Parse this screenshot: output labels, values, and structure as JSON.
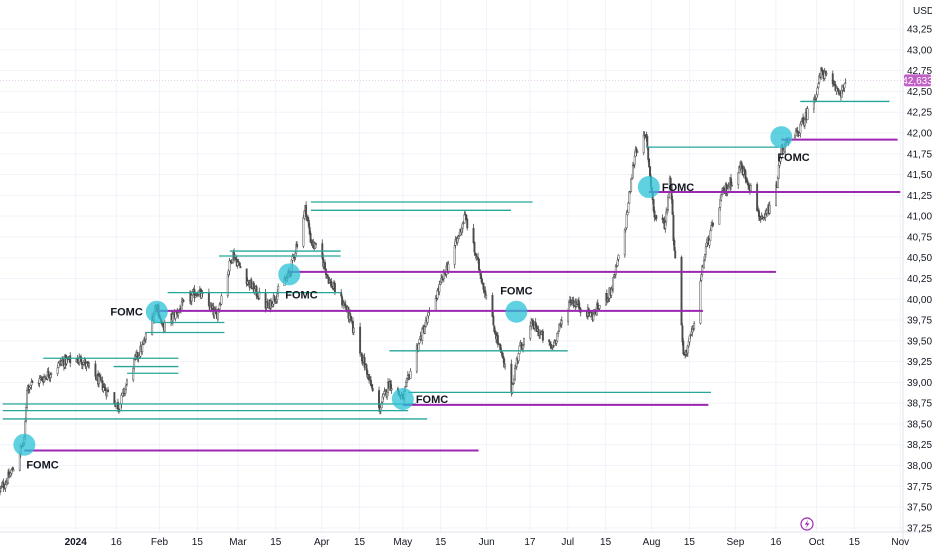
{
  "currency_label": "USD",
  "last_price_label": "42,633",
  "colors": {
    "candle": "#4a4a4a",
    "support_line": "#26a69a",
    "fomc_line": "#9c27b0",
    "fomc_marker": "#29c2d6",
    "price_badge": "#c160c6",
    "grid": "#f0f3fa",
    "axis_text": "#131722"
  },
  "icons": [
    "lightning-icon"
  ],
  "chart_data": {
    "type": "candlestick",
    "title": "",
    "xlabel": "",
    "ylabel": "",
    "ylim": [
      37200,
      43600
    ],
    "xlim": [
      "2023-12-04",
      "2024-11-02"
    ],
    "y_ticks": [
      37250,
      37500,
      37750,
      38000,
      38250,
      38500,
      38750,
      39000,
      39250,
      39500,
      39750,
      40000,
      40250,
      40500,
      40750,
      41000,
      41250,
      41500,
      41750,
      42000,
      42250,
      42500,
      42750,
      43000,
      43250
    ],
    "y_tick_labels": [
      "37,250",
      "37,500",
      "37,750",
      "38,000",
      "38,250",
      "38,500",
      "38,750",
      "39,000",
      "39,250",
      "39,500",
      "39,750",
      "40,000",
      "40,250",
      "40,500",
      "40,750",
      "41,000",
      "41,250",
      "41,500",
      "41,750",
      "42,000",
      "42,250",
      "42,500",
      "42,750",
      "43,000",
      "43,250"
    ],
    "x_ticks": [
      {
        "date": "2024-01-01",
        "label": "2024"
      },
      {
        "date": "2024-01-16",
        "label": "16"
      },
      {
        "date": "2024-02-01",
        "label": "Feb"
      },
      {
        "date": "2024-02-15",
        "label": "15"
      },
      {
        "date": "2024-03-01",
        "label": "Mar"
      },
      {
        "date": "2024-03-15",
        "label": "15"
      },
      {
        "date": "2024-04-01",
        "label": "Apr"
      },
      {
        "date": "2024-04-15",
        "label": "15"
      },
      {
        "date": "2024-05-01",
        "label": "May"
      },
      {
        "date": "2024-05-15",
        "label": "15"
      },
      {
        "date": "2024-06-01",
        "label": "Jun"
      },
      {
        "date": "2024-06-17",
        "label": "17"
      },
      {
        "date": "2024-07-01",
        "label": "Jul"
      },
      {
        "date": "2024-07-15",
        "label": "15"
      },
      {
        "date": "2024-08-01",
        "label": "Aug"
      },
      {
        "date": "2024-08-15",
        "label": "15"
      },
      {
        "date": "2024-09-01",
        "label": "Sep"
      },
      {
        "date": "2024-09-16",
        "label": "16"
      },
      {
        "date": "2024-10-01",
        "label": "Oct"
      },
      {
        "date": "2024-10-15",
        "label": "15"
      },
      {
        "date": "2024-11-01",
        "label": "Nov"
      }
    ],
    "last_price": 42633,
    "price_path": [
      [
        "2023-12-04",
        37700
      ],
      [
        "2023-12-08",
        37900
      ],
      [
        "2023-12-13",
        38300
      ],
      [
        "2023-12-14",
        38950
      ],
      [
        "2023-12-20",
        39050
      ],
      [
        "2023-12-27",
        39250
      ],
      [
        "2024-01-03",
        39280
      ],
      [
        "2024-01-10",
        39000
      ],
      [
        "2024-01-17",
        38700
      ],
      [
        "2024-01-22",
        39200
      ],
      [
        "2024-01-26",
        39450
      ],
      [
        "2024-01-31",
        39950
      ],
      [
        "2024-02-02",
        39650
      ],
      [
        "2024-02-09",
        39900
      ],
      [
        "2024-02-15",
        40100
      ],
      [
        "2024-02-22",
        39800
      ],
      [
        "2024-02-28",
        40550
      ],
      [
        "2024-03-05",
        40200
      ],
      [
        "2024-03-12",
        39900
      ],
      [
        "2024-03-20",
        40300
      ],
      [
        "2024-03-26",
        41100
      ],
      [
        "2024-03-28",
        40700
      ],
      [
        "2024-04-01",
        40500
      ],
      [
        "2024-04-04",
        40200
      ],
      [
        "2024-04-10",
        39900
      ],
      [
        "2024-04-17",
        39200
      ],
      [
        "2024-04-22",
        38650
      ],
      [
        "2024-04-26",
        39000
      ],
      [
        "2024-05-01",
        38800
      ],
      [
        "2024-05-06",
        39400
      ],
      [
        "2024-05-14",
        40100
      ],
      [
        "2024-05-21",
        40700
      ],
      [
        "2024-05-24",
        41000
      ],
      [
        "2024-05-29",
        40400
      ],
      [
        "2024-06-05",
        39500
      ],
      [
        "2024-06-10",
        38900
      ],
      [
        "2024-06-13",
        39400
      ],
      [
        "2024-06-18",
        39700
      ],
      [
        "2024-06-25",
        39400
      ],
      [
        "2024-07-02",
        40000
      ],
      [
        "2024-07-10",
        39800
      ],
      [
        "2024-07-17",
        40100
      ],
      [
        "2024-07-22",
        40800
      ],
      [
        "2024-07-26",
        41800
      ],
      [
        "2024-07-30",
        41950
      ],
      [
        "2024-08-02",
        41000
      ],
      [
        "2024-08-06",
        40900
      ],
      [
        "2024-08-08",
        41500
      ],
      [
        "2024-08-09",
        40800
      ],
      [
        "2024-08-13",
        39300
      ],
      [
        "2024-08-16",
        39600
      ],
      [
        "2024-08-21",
        40600
      ],
      [
        "2024-08-27",
        41250
      ],
      [
        "2024-09-03",
        41600
      ],
      [
        "2024-09-06",
        41400
      ],
      [
        "2024-09-11",
        40900
      ],
      [
        "2024-09-16",
        41300
      ],
      [
        "2024-09-18",
        41800
      ],
      [
        "2024-09-24",
        42000
      ],
      [
        "2024-09-30",
        42400
      ],
      [
        "2024-10-03",
        42750
      ],
      [
        "2024-10-07",
        42550
      ],
      [
        "2024-10-10",
        42500
      ],
      [
        "2024-10-14",
        42633
      ]
    ],
    "support_lines": [
      {
        "from": "2023-12-05",
        "to": "2024-05-10",
        "y": 38560
      },
      {
        "from": "2023-12-05",
        "to": "2024-05-03",
        "y": 38660
      },
      {
        "from": "2023-12-05",
        "to": "2024-05-06",
        "y": 38740
      },
      {
        "from": "2023-12-20",
        "to": "2024-02-08",
        "y": 39290
      },
      {
        "from": "2024-01-15",
        "to": "2024-02-08",
        "y": 39190
      },
      {
        "from": "2024-01-20",
        "to": "2024-02-08",
        "y": 39110
      },
      {
        "from": "2024-01-27",
        "to": "2024-02-25",
        "y": 39600
      },
      {
        "from": "2024-01-30",
        "to": "2024-02-25",
        "y": 39720
      },
      {
        "from": "2024-02-04",
        "to": "2024-04-08",
        "y": 40080
      },
      {
        "from": "2024-02-23",
        "to": "2024-04-08",
        "y": 40520
      },
      {
        "from": "2024-02-27",
        "to": "2024-04-08",
        "y": 40580
      },
      {
        "from": "2024-03-28",
        "to": "2024-06-18",
        "y": 41170
      },
      {
        "from": "2024-03-28",
        "to": "2024-06-10",
        "y": 41070
      },
      {
        "from": "2024-04-26",
        "to": "2024-07-01",
        "y": 39380
      },
      {
        "from": "2024-05-03",
        "to": "2024-08-23",
        "y": 38880
      },
      {
        "from": "2024-07-30",
        "to": "2024-09-17",
        "y": 41830
      },
      {
        "from": "2024-09-25",
        "to": "2024-10-28",
        "y": 42380
      }
    ],
    "fomc_lines": [
      {
        "from": "2023-12-13",
        "to": "2024-05-29",
        "y": 38180
      },
      {
        "from": "2024-01-31",
        "to": "2024-08-20",
        "y": 39860
      },
      {
        "from": "2024-03-20",
        "to": "2024-09-16",
        "y": 40330
      },
      {
        "from": "2024-05-01",
        "to": "2024-08-22",
        "y": 38730
      },
      {
        "from": "2024-07-31",
        "to": "2024-11-01",
        "y": 41290
      },
      {
        "from": "2024-09-18",
        "to": "2024-10-31",
        "y": 41920
      }
    ],
    "annotations": [
      {
        "label": "FOMC",
        "date": "2023-12-13",
        "y": 38250,
        "text_position": "below"
      },
      {
        "label": "FOMC",
        "date": "2024-01-31",
        "y": 39850,
        "text_position": "left"
      },
      {
        "label": "FOMC",
        "date": "2024-03-20",
        "y": 40300,
        "text_position": "below"
      },
      {
        "label": "FOMC",
        "date": "2024-05-01",
        "y": 38800,
        "text_position": "right"
      },
      {
        "label": "FOMC",
        "date": "2024-06-12",
        "y": 39850,
        "text_position": "above"
      },
      {
        "label": "FOMC",
        "date": "2024-07-31",
        "y": 41350,
        "text_position": "right"
      },
      {
        "label": "FOMC",
        "date": "2024-09-18",
        "y": 41950,
        "text_position": "below"
      }
    ]
  }
}
